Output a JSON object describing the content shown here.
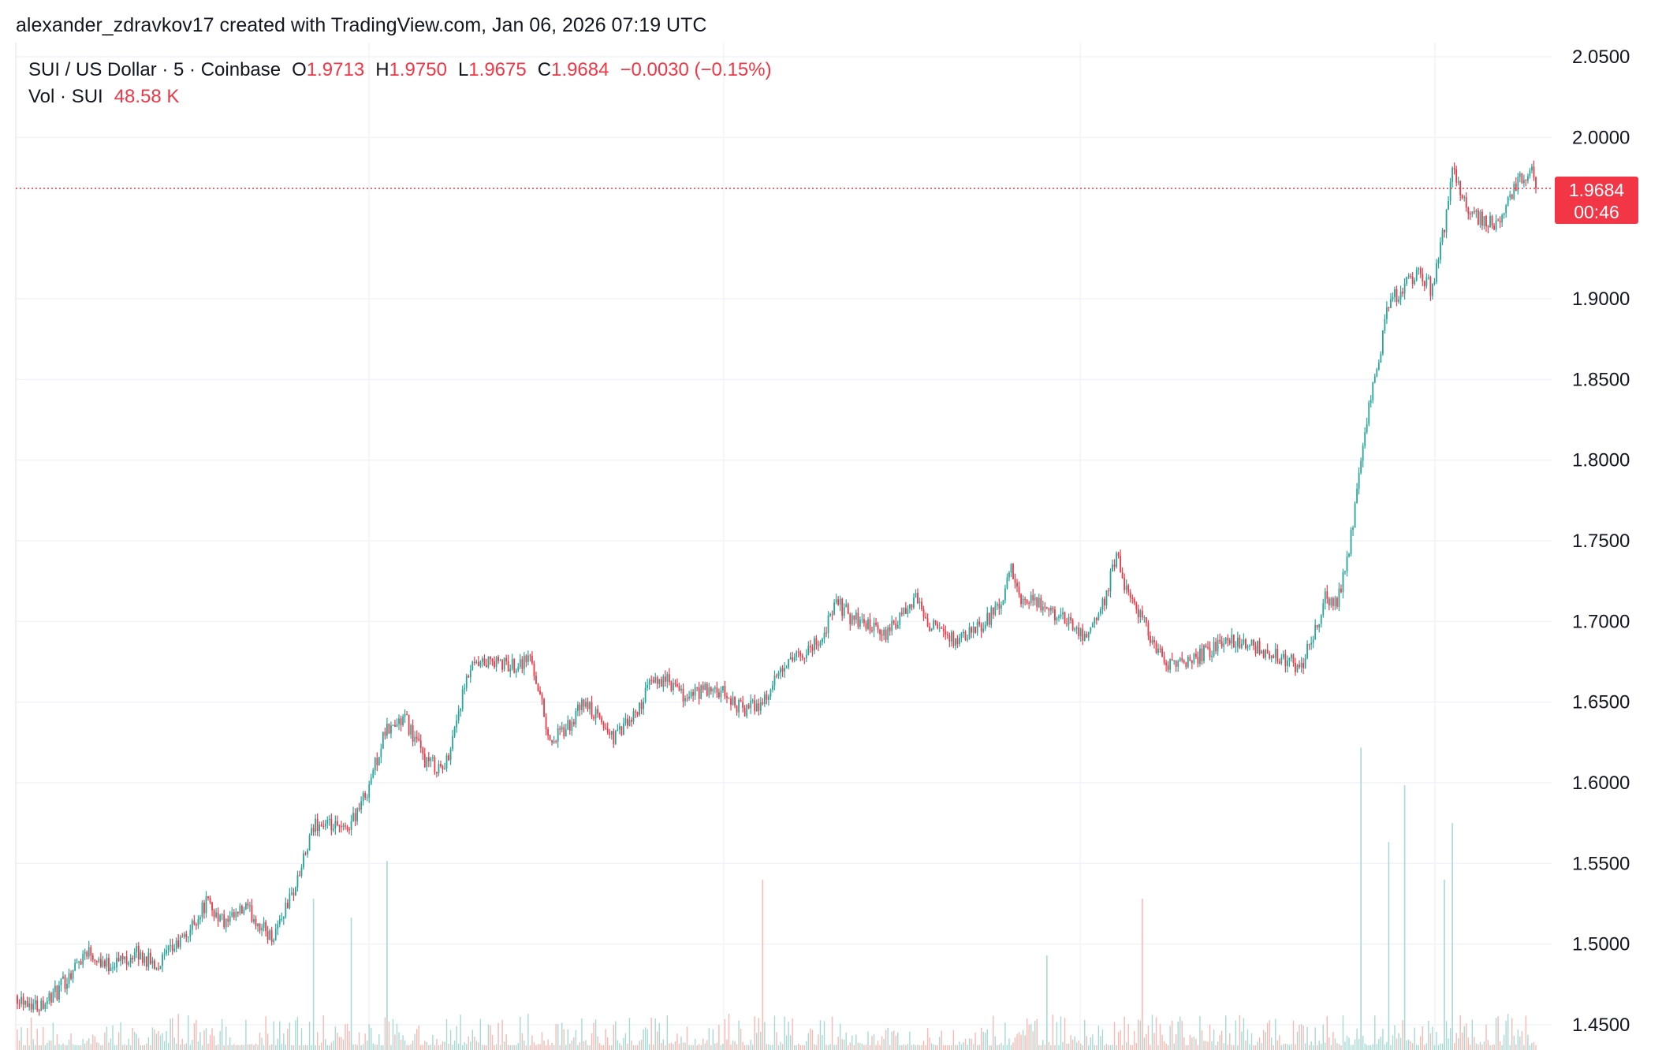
{
  "header": {
    "attribution": "alexander_zdravkov17 created with TradingView.com, Jan 06, 2026 07:19 UTC"
  },
  "legend": {
    "symbol": "SUI / US Dollar · 5 · Coinbase",
    "open_label": "O",
    "open": "1.9713",
    "high_label": "H",
    "high": "1.9750",
    "low_label": "L",
    "low": "1.9675",
    "close_label": "C",
    "close": "1.9684",
    "change": "−0.0030 (−0.15%)",
    "volume_label": "Vol · SUI",
    "volume": "48.58 K"
  },
  "price_badge": {
    "price": "1.9684",
    "countdown": "00:46"
  },
  "colors": {
    "up": "#26a69a",
    "down": "#f23645",
    "grid": "#f0f3fa",
    "axis_text": "#131722",
    "vol_up": "#a8d9d4",
    "vol_down": "#f7b9b2"
  },
  "chart_data": {
    "type": "candlestick",
    "timeframe": "5",
    "exchange": "Coinbase",
    "pair": "SUI / US Dollar",
    "y_ticks": [
      "2.0500",
      "2.0000",
      "1.9000",
      "1.8500",
      "1.8000",
      "1.7500",
      "1.7000",
      "1.6500",
      "1.6000",
      "1.5500",
      "1.5000",
      "1.4500"
    ],
    "ylim": [
      1.434,
      2.058
    ],
    "last_price": 1.9684,
    "grid": true,
    "close_path": [
      [
        0,
        1.468
      ],
      [
        10,
        1.462
      ],
      [
        20,
        1.47
      ],
      [
        35,
        1.497
      ],
      [
        45,
        1.487
      ],
      [
        60,
        1.494
      ],
      [
        70,
        1.487
      ],
      [
        85,
        1.505
      ],
      [
        95,
        1.526
      ],
      [
        105,
        1.512
      ],
      [
        115,
        1.522
      ],
      [
        128,
        1.504
      ],
      [
        140,
        1.536
      ],
      [
        150,
        1.575
      ],
      [
        165,
        1.57
      ],
      [
        175,
        1.592
      ],
      [
        185,
        1.631
      ],
      [
        195,
        1.64
      ],
      [
        205,
        1.614
      ],
      [
        215,
        1.608
      ],
      [
        222,
        1.645
      ],
      [
        228,
        1.67
      ],
      [
        238,
        1.675
      ],
      [
        248,
        1.672
      ],
      [
        258,
        1.678
      ],
      [
        262,
        1.66
      ],
      [
        268,
        1.625
      ],
      [
        278,
        1.635
      ],
      [
        285,
        1.65
      ],
      [
        292,
        1.64
      ],
      [
        300,
        1.628
      ],
      [
        310,
        1.64
      ],
      [
        318,
        1.66
      ],
      [
        325,
        1.665
      ],
      [
        335,
        1.653
      ],
      [
        345,
        1.657
      ],
      [
        355,
        1.655
      ],
      [
        365,
        1.645
      ],
      [
        375,
        1.65
      ],
      [
        385,
        1.67
      ],
      [
        395,
        1.68
      ],
      [
        405,
        1.69
      ],
      [
        412,
        1.712
      ],
      [
        420,
        1.702
      ],
      [
        428,
        1.698
      ],
      [
        435,
        1.69
      ],
      [
        445,
        1.702
      ],
      [
        452,
        1.714
      ],
      [
        458,
        1.7
      ],
      [
        468,
        1.69
      ],
      [
        475,
        1.688
      ],
      [
        485,
        1.698
      ],
      [
        495,
        1.71
      ],
      [
        500,
        1.732
      ],
      [
        505,
        1.71
      ],
      [
        512,
        1.712
      ],
      [
        520,
        1.706
      ],
      [
        530,
        1.7
      ],
      [
        538,
        1.69
      ],
      [
        545,
        1.706
      ],
      [
        553,
        1.74
      ],
      [
        560,
        1.712
      ],
      [
        565,
        1.705
      ],
      [
        572,
        1.685
      ],
      [
        580,
        1.672
      ],
      [
        590,
        1.676
      ],
      [
        600,
        1.682
      ],
      [
        610,
        1.69
      ],
      [
        622,
        1.684
      ],
      [
        632,
        1.68
      ],
      [
        640,
        1.676
      ],
      [
        645,
        1.67
      ],
      [
        652,
        1.69
      ],
      [
        658,
        1.715
      ],
      [
        664,
        1.712
      ],
      [
        670,
        1.745
      ],
      [
        675,
        1.788
      ],
      [
        680,
        1.832
      ],
      [
        685,
        1.862
      ],
      [
        690,
        1.898
      ],
      [
        698,
        1.908
      ],
      [
        705,
        1.917
      ],
      [
        712,
        1.905
      ],
      [
        718,
        1.945
      ],
      [
        722,
        1.985
      ],
      [
        728,
        1.96
      ],
      [
        735,
        1.95
      ],
      [
        742,
        1.946
      ],
      [
        750,
        1.958
      ],
      [
        756,
        1.975
      ],
      [
        762,
        1.978
      ],
      [
        764,
        1.968
      ]
    ],
    "bars_per_unit": 1,
    "volume_spikes": [
      {
        "x": 149,
        "height": 0.16,
        "up": true
      },
      {
        "x": 168,
        "height": 0.14,
        "up": true
      },
      {
        "x": 186,
        "height": 0.2,
        "up": true
      },
      {
        "x": 375,
        "height": 0.18,
        "up": false
      },
      {
        "x": 518,
        "height": 0.1,
        "up": true
      },
      {
        "x": 566,
        "height": 0.16,
        "up": false
      },
      {
        "x": 676,
        "height": 0.32,
        "up": true
      },
      {
        "x": 690,
        "height": 0.22,
        "up": true
      },
      {
        "x": 698,
        "height": 0.28,
        "up": true
      },
      {
        "x": 718,
        "height": 0.18,
        "up": true
      },
      {
        "x": 722,
        "height": 0.24,
        "up": true
      }
    ]
  }
}
